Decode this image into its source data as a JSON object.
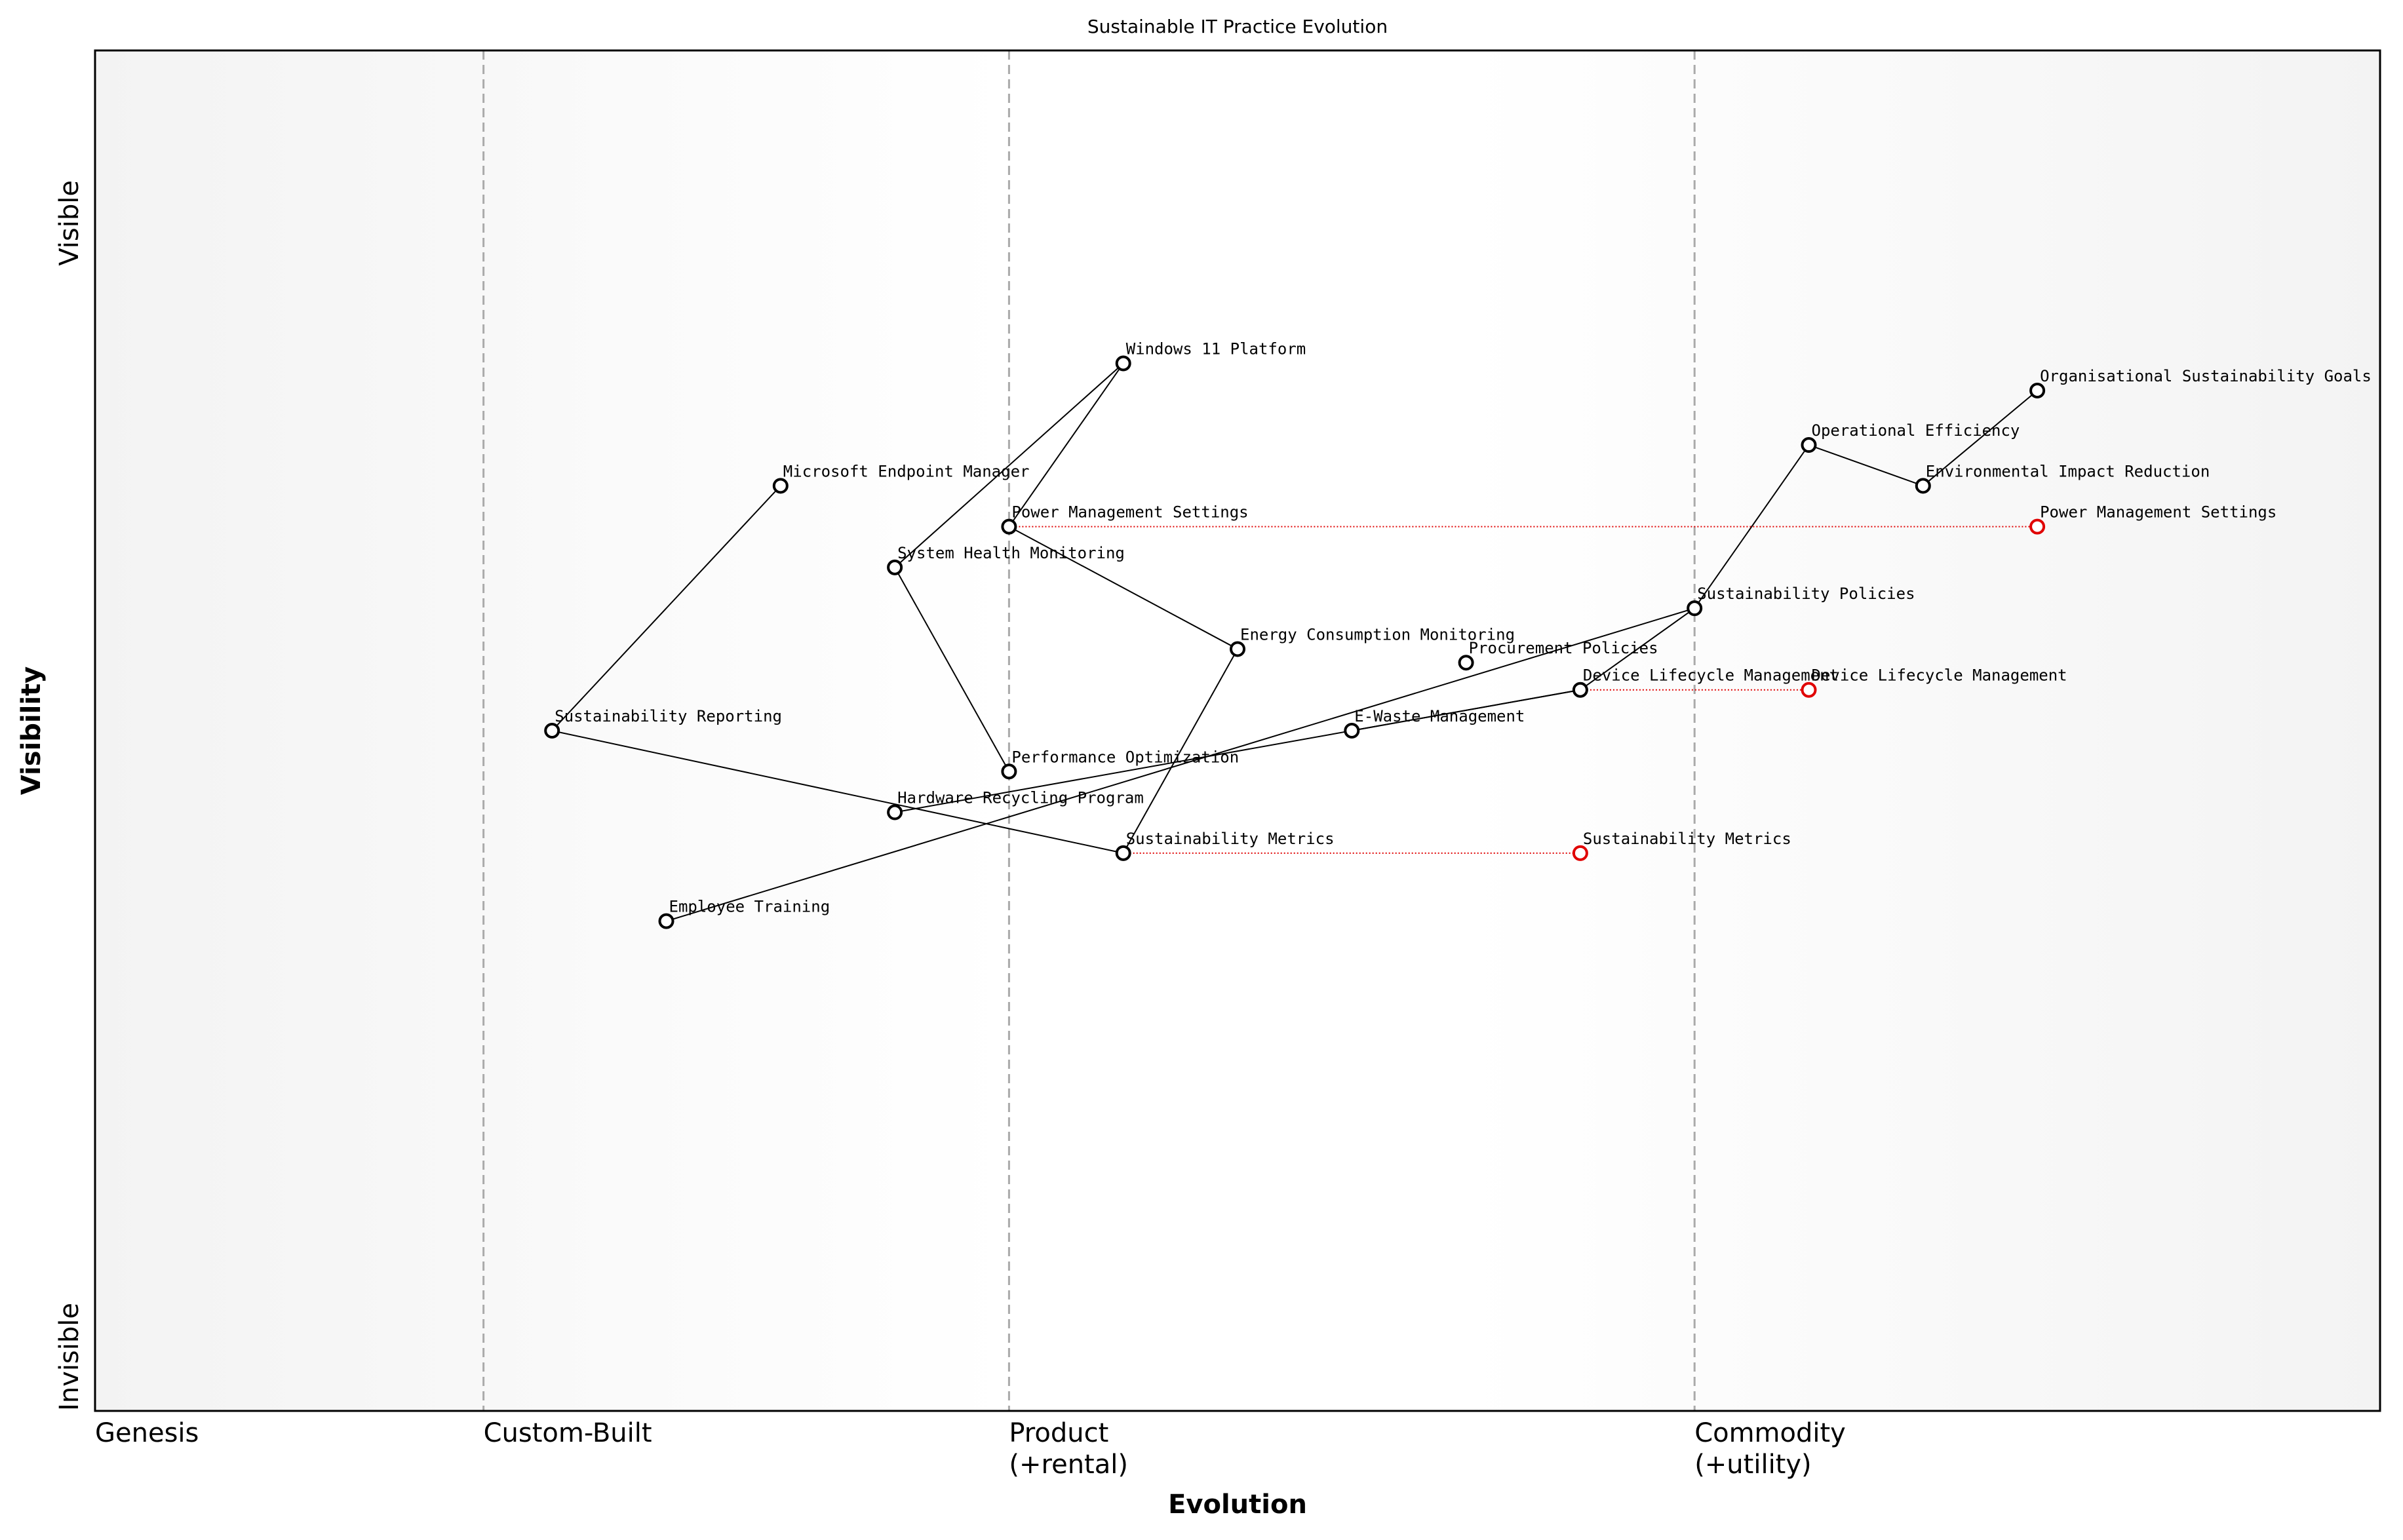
{
  "chart_data": {
    "type": "wardley",
    "title": "Sustainable IT Practice Evolution",
    "x_label": "Evolution",
    "y_label": "Visibility",
    "y_high_label": "Visible",
    "y_low_label": "Invisible",
    "xlim": [
      0,
      1
    ],
    "ylim": [
      0,
      1
    ],
    "xticks": [
      {
        "value": 0,
        "label": "Genesis"
      },
      {
        "value": 0.17,
        "label": "Custom-Built"
      },
      {
        "value": 0.4,
        "label": "Product\n(+rental)"
      },
      {
        "value": 0.7,
        "label": "Commodity\n(+utility)"
      }
    ],
    "component_color": "#000000",
    "evolved_color": "#e00000",
    "components": [
      {
        "name": "Windows 11 Platform",
        "evolution": 0.45,
        "visibility": 0.77
      },
      {
        "name": "Microsoft Endpoint Manager",
        "evolution": 0.3,
        "visibility": 0.68
      },
      {
        "name": "Power Management Settings",
        "evolution": 0.4,
        "visibility": 0.65
      },
      {
        "name": "System Health Monitoring",
        "evolution": 0.35,
        "visibility": 0.62
      },
      {
        "name": "Energy Consumption Monitoring",
        "evolution": 0.5,
        "visibility": 0.56
      },
      {
        "name": "Procurement Policies",
        "evolution": 0.6,
        "visibility": 0.55
      },
      {
        "name": "Device Lifecycle Management",
        "evolution": 0.65,
        "visibility": 0.53
      },
      {
        "name": "E-Waste Management",
        "evolution": 0.55,
        "visibility": 0.5
      },
      {
        "name": "Sustainability Reporting",
        "evolution": 0.2,
        "visibility": 0.5
      },
      {
        "name": "Performance Optimization",
        "evolution": 0.4,
        "visibility": 0.47
      },
      {
        "name": "Hardware Recycling Program",
        "evolution": 0.35,
        "visibility": 0.44
      },
      {
        "name": "Sustainability Metrics",
        "evolution": 0.45,
        "visibility": 0.41
      },
      {
        "name": "Employee Training",
        "evolution": 0.25,
        "visibility": 0.36
      },
      {
        "name": "Sustainability Policies",
        "evolution": 0.7,
        "visibility": 0.59
      },
      {
        "name": "Operational Efficiency",
        "evolution": 0.75,
        "visibility": 0.71
      },
      {
        "name": "Environmental Impact Reduction",
        "evolution": 0.8,
        "visibility": 0.68
      },
      {
        "name": "Organisational Sustainability Goals",
        "evolution": 0.85,
        "visibility": 0.75
      }
    ],
    "links": [
      [
        "Sustainability Reporting",
        "Microsoft Endpoint Manager"
      ],
      [
        "Windows 11 Platform",
        "System Health Monitoring"
      ],
      [
        "Windows 11 Platform",
        "Power Management Settings"
      ],
      [
        "Power Management Settings",
        "Energy Consumption Monitoring"
      ],
      [
        "System Health Monitoring",
        "Performance Optimization"
      ],
      [
        "Energy Consumption Monitoring",
        "Sustainability Metrics"
      ],
      [
        "Sustainability Reporting",
        "Sustainability Metrics"
      ],
      [
        "Employee Training",
        "Sustainability Policies"
      ],
      [
        "Hardware Recycling Program",
        "Device Lifecycle Management"
      ],
      [
        "E-Waste Management",
        "Device Lifecycle Management"
      ],
      [
        "Device Lifecycle Management",
        "Sustainability Policies"
      ],
      [
        "Sustainability Policies",
        "Operational Efficiency"
      ],
      [
        "Operational Efficiency",
        "Environmental Impact Reduction"
      ],
      [
        "Environmental Impact Reduction",
        "Organisational Sustainability Goals"
      ]
    ],
    "evolved": [
      {
        "name": "Power Management Settings",
        "evolution": 0.85
      },
      {
        "name": "Device Lifecycle Management",
        "evolution": 0.75
      },
      {
        "name": "Sustainability Metrics",
        "evolution": 0.65
      }
    ]
  }
}
